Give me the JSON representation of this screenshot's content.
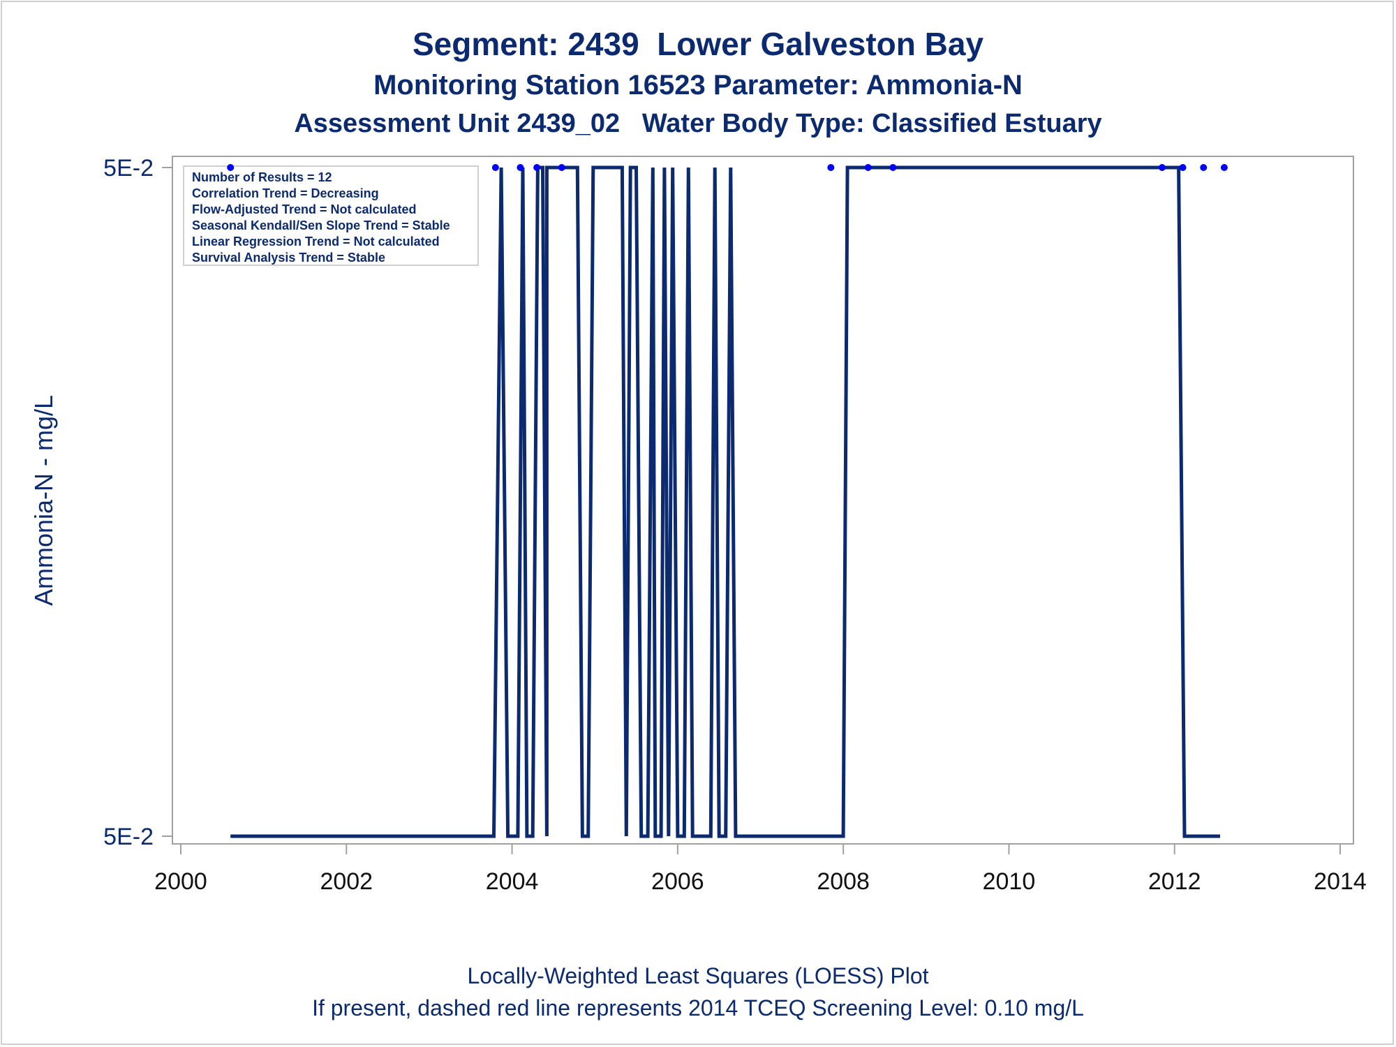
{
  "titles": {
    "line1": "Segment: 2439  Lower Galveston Bay",
    "line2": "Monitoring Station 16523 Parameter: Ammonia-N",
    "line3": "Assessment Unit 2439_02   Water Body Type: Classified Estuary"
  },
  "footnotes": {
    "line1": "Locally-Weighted Least Squares (LOESS) Plot",
    "line2": "If present, dashed red line represents 2014 TCEQ Screening Level: 0.10 mg/L"
  },
  "stats_box": [
    "Number of Results = 12",
    "Correlation Trend = Decreasing",
    "Flow-Adjusted Trend = Not calculated",
    "Seasonal Kendall/Sen Slope Trend = Stable",
    "Linear Regression Trend = Not calculated",
    "Survival Analysis Trend = Stable"
  ],
  "colors": {
    "line": "#0b2a6f",
    "points": "#0000ff",
    "text": "#0b2a6f",
    "axis": "#a0a0a0"
  },
  "chart_data": {
    "type": "line",
    "ylabel": "Ammonia-N - mg/L",
    "xlabel": "",
    "xlim": [
      2000,
      2014
    ],
    "ylim": [
      0,
      1
    ],
    "x_ticks": [
      2000,
      2002,
      2004,
      2006,
      2008,
      2010,
      2012,
      2014
    ],
    "y_ticks": [
      {
        "value": 0,
        "label": "5E-2"
      },
      {
        "value": 1,
        "label": "5E-2"
      }
    ],
    "points": [
      {
        "x": 2000.6,
        "y": 1
      },
      {
        "x": 2003.8,
        "y": 1
      },
      {
        "x": 2004.1,
        "y": 1
      },
      {
        "x": 2004.3,
        "y": 1
      },
      {
        "x": 2004.6,
        "y": 1
      },
      {
        "x": 2007.85,
        "y": 1
      },
      {
        "x": 2008.3,
        "y": 1
      },
      {
        "x": 2008.6,
        "y": 1
      },
      {
        "x": 2011.85,
        "y": 1
      },
      {
        "x": 2012.1,
        "y": 1
      },
      {
        "x": 2012.35,
        "y": 1
      },
      {
        "x": 2012.6,
        "y": 1
      }
    ],
    "loess_line": [
      [
        2000.6,
        0
      ],
      [
        2003.78,
        0
      ],
      [
        2003.87,
        1
      ],
      [
        2003.95,
        0
      ],
      [
        2004.07,
        0
      ],
      [
        2004.13,
        1
      ],
      [
        2004.18,
        0
      ],
      [
        2004.25,
        0
      ],
      [
        2004.31,
        1
      ],
      [
        2004.37,
        1
      ],
      [
        2004.42,
        0
      ],
      [
        2004.42,
        1
      ],
      [
        2004.5,
        1
      ],
      [
        2004.55,
        1
      ],
      [
        2004.79,
        1
      ],
      [
        2004.85,
        0
      ],
      [
        2004.92,
        0
      ],
      [
        2004.98,
        1
      ],
      [
        2005.33,
        1
      ],
      [
        2005.38,
        0
      ],
      [
        2005.43,
        1
      ],
      [
        2005.5,
        1
      ],
      [
        2005.56,
        0
      ],
      [
        2005.64,
        0
      ],
      [
        2005.7,
        1
      ],
      [
        2005.73,
        0
      ],
      [
        2005.8,
        0
      ],
      [
        2005.84,
        1
      ],
      [
        2005.89,
        0
      ],
      [
        2005.94,
        1
      ],
      [
        2006.0,
        0
      ],
      [
        2006.08,
        0
      ],
      [
        2006.13,
        1
      ],
      [
        2006.18,
        0
      ],
      [
        2006.4,
        0
      ],
      [
        2006.45,
        1
      ],
      [
        2006.5,
        0
      ],
      [
        2006.58,
        0
      ],
      [
        2006.64,
        1
      ],
      [
        2006.7,
        0
      ],
      [
        2008.0,
        0
      ],
      [
        2008.05,
        1
      ],
      [
        2012.05,
        1
      ],
      [
        2012.12,
        0
      ],
      [
        2012.55,
        0
      ]
    ]
  }
}
